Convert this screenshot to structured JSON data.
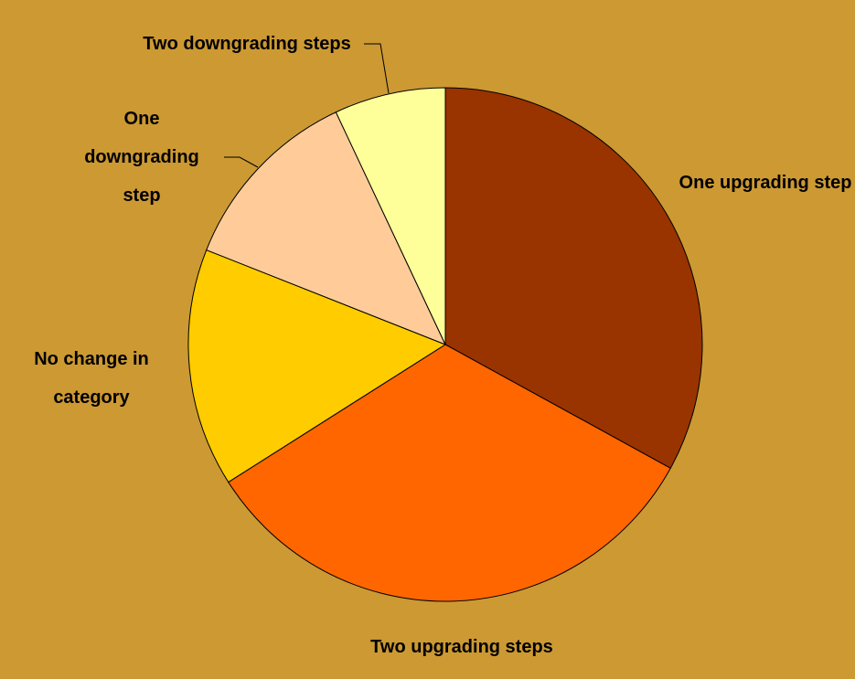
{
  "chart_data": {
    "type": "pie",
    "categories": [
      "One upgrading step",
      "Two upgrading steps",
      "No change in category",
      "One downgrading step",
      "Two downgrading steps"
    ],
    "values": [
      33,
      33,
      15,
      12,
      7
    ],
    "colors": [
      "#993300",
      "#ff6600",
      "#ffcc00",
      "#ffcc99",
      "#ffff99"
    ]
  }
}
